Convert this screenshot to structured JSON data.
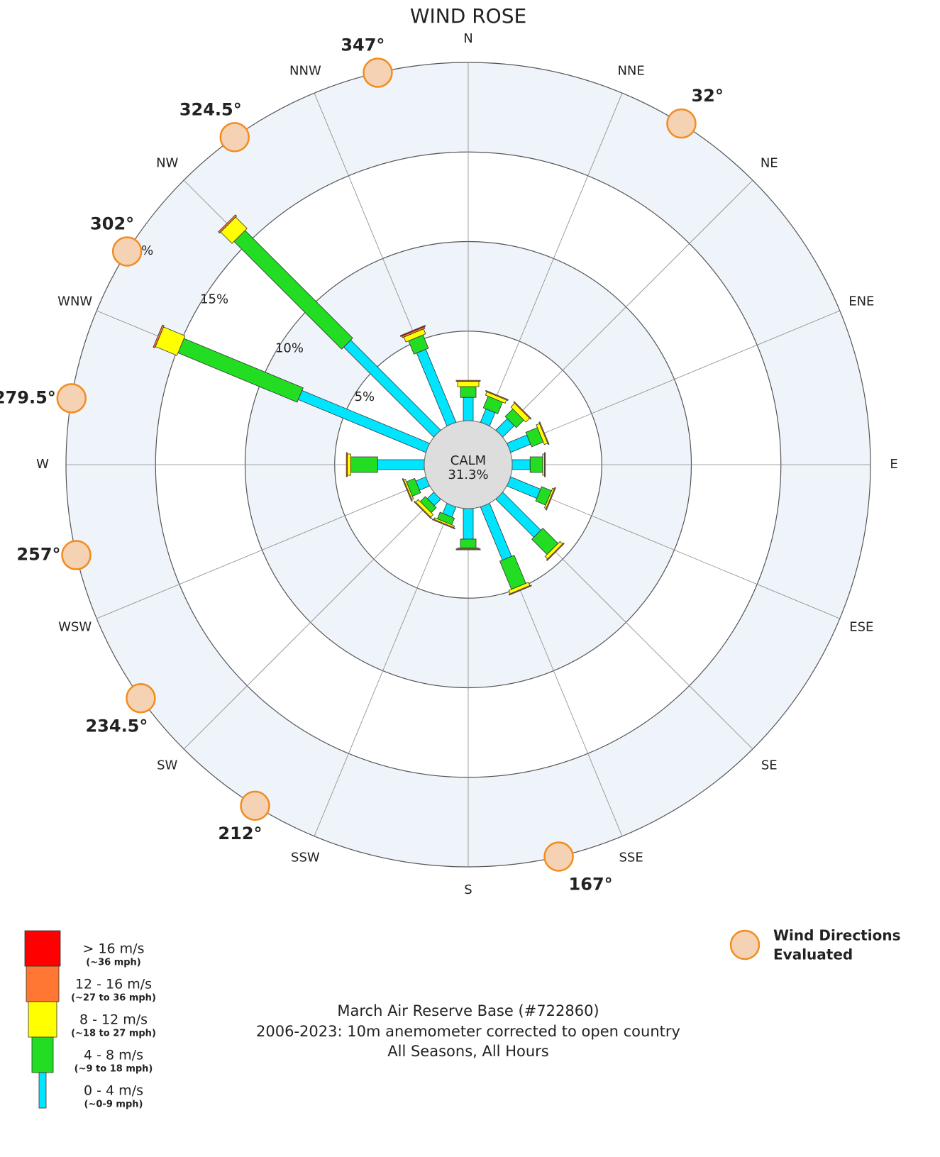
{
  "chart_data": {
    "type": "windrose",
    "title": "WIND ROSE",
    "directions": [
      "N",
      "NNE",
      "NE",
      "ENE",
      "E",
      "ESE",
      "SE",
      "SSE",
      "S",
      "SSW",
      "SW",
      "WSW",
      "W",
      "WNW",
      "NW",
      "NNW"
    ],
    "rlim": [
      0,
      20
    ],
    "rticks": [
      {
        "value": 5,
        "label": "5%"
      },
      {
        "value": 10,
        "label": "10%"
      },
      {
        "value": 15,
        "label": "15%"
      },
      {
        "value": 20,
        "label": "20%"
      }
    ],
    "calm": {
      "label": "CALM",
      "value": 31.3,
      "value_label": "31.3%"
    },
    "series": [
      {
        "name": "0 -  4 m/s",
        "sublabel": "(~0-9 mph)",
        "color": "#00e5ff",
        "values": [
          1.3,
          0.8,
          0.9,
          1.2,
          1.0,
          1.8,
          3.0,
          3.2,
          1.7,
          0.6,
          0.5,
          0.6,
          2.6,
          7.7,
          7.1,
          4.4
        ]
      },
      {
        "name": "4 -  8 m/s",
        "sublabel": "(~9 to 18 mph)",
        "color": "#22dd22",
        "values": [
          0.6,
          0.7,
          0.6,
          0.7,
          0.7,
          0.6,
          1.2,
          1.7,
          0.5,
          0.4,
          0.4,
          0.5,
          1.5,
          7.2,
          8.5,
          0.8
        ]
      },
      {
        "name": "8 - 12 m/s",
        "sublabel": "(~18 to 27 mph)",
        "color": "#ffff00",
        "values": [
          0.3,
          0.2,
          0.3,
          0.2,
          0.1,
          0.1,
          0.2,
          0.2,
          0.05,
          0.1,
          0.2,
          0.1,
          0.2,
          1.3,
          0.9,
          0.3
        ]
      },
      {
        "name": "12 - 16 m/s",
        "sublabel": "(~27 to 36 mph)",
        "color": "#ff7733",
        "values": [
          0.05,
          0.05,
          0.05,
          0.05,
          0.05,
          0.05,
          0.05,
          0.05,
          0.05,
          0.05,
          0.05,
          0.05,
          0.05,
          0.1,
          0.1,
          0.1
        ]
      },
      {
        "name": "> 16 m/s",
        "sublabel": "(~36 mph)",
        "color": "#ff0000",
        "values": [
          0,
          0,
          0,
          0,
          0,
          0,
          0,
          0,
          0,
          0,
          0,
          0,
          0,
          0,
          0,
          0.05
        ]
      }
    ],
    "evaluated": {
      "label": [
        "Wind Directions",
        "Evaluated"
      ],
      "directions": [
        {
          "value": 347,
          "label": "347°"
        },
        {
          "value": 32,
          "label": "32°"
        },
        {
          "value": 167,
          "label": "167°"
        },
        {
          "value": 212,
          "label": "212°"
        },
        {
          "value": 234.5,
          "label": "234.5°"
        },
        {
          "value": 257,
          "label": "257°"
        },
        {
          "value": 279.5,
          "label": "279.5°"
        },
        {
          "value": 302,
          "label": "302°"
        },
        {
          "value": 324.5,
          "label": "324.5°"
        }
      ]
    },
    "footer": [
      "March Air Reserve Base (#722860)",
      "2006-2023: 10m anemometer corrected to open country",
      "All Seasons, All Hours"
    ]
  }
}
